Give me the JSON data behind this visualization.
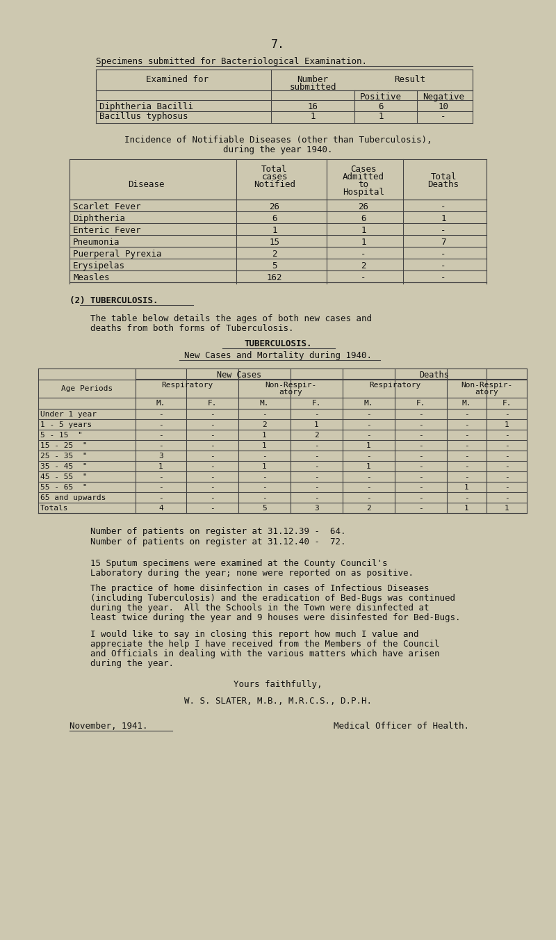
{
  "bg_color": "#cdc8b0",
  "text_color": "#1a1a1a",
  "page_number": "7.",
  "table1_title": "Specimens submitted for Bacteriological Examination.",
  "table1_rows": [
    [
      "Diphtheria Bacilli",
      "16",
      "6",
      "10"
    ],
    [
      "Bacillus typhosus",
      "1",
      "1",
      "-"
    ]
  ],
  "incidence_title1": "Incidence of Notifiable Diseases (other than Tuberculosis),",
  "incidence_title2": "during the year 1940.",
  "table2_rows": [
    [
      "Scarlet Fever",
      "26",
      "26",
      "-"
    ],
    [
      "Diphtheria",
      "6",
      "6",
      "1"
    ],
    [
      "Enteric Fever",
      "1",
      "1",
      "-"
    ],
    [
      "Pneumonia",
      "15",
      "1",
      "7"
    ],
    [
      "Puerperal Pyrexia",
      "2",
      "-",
      "-"
    ],
    [
      "Erysipelas",
      "5",
      "2",
      "-"
    ],
    [
      "Measles",
      "162",
      "-",
      "-"
    ]
  ],
  "tb_section_label": "(2) TUBERCULOSIS.",
  "tb_para1": "The table below details the ages of both new cases and",
  "tb_para2": "deaths from both forms of Tuberculosis.",
  "tb_table_title1": "TUBERCULOSIS.",
  "tb_table_title2": "New Cases and Mortality during 1940.",
  "tb_rows": [
    [
      "Under 1 year",
      "-",
      "-",
      "-",
      "-",
      "-",
      "-",
      "-",
      "-"
    ],
    [
      "1 - 5 years",
      "-",
      "-",
      "2",
      "1",
      "-",
      "-",
      "-",
      "1"
    ],
    [
      "5 - 15  \"",
      "-",
      "-",
      "1",
      "2",
      "-",
      "-",
      "-",
      "-"
    ],
    [
      "15 - 25  \"",
      "-",
      "-",
      "1",
      "-",
      "1",
      "-",
      "-",
      "-"
    ],
    [
      "25 - 35  \"",
      "3",
      "-",
      "-",
      "-",
      "-",
      "-",
      "-",
      "-"
    ],
    [
      "35 - 45  \"",
      "1",
      "-",
      "1",
      "-",
      "1",
      "-",
      "-",
      "-"
    ],
    [
      "45 - 55  \"",
      "-",
      "-",
      "-",
      "-",
      "-",
      "-",
      "-",
      "-"
    ],
    [
      "55 - 65  \"",
      "-",
      "-",
      "-",
      "-",
      "-",
      "-",
      "1",
      "-"
    ],
    [
      "65 and upwards",
      "-",
      "-",
      "-",
      "-",
      "-",
      "-",
      "-",
      "-"
    ],
    [
      "Totals",
      "4",
      "-",
      "5",
      "3",
      "2",
      "-",
      "1",
      "1"
    ]
  ],
  "register_lines": [
    "Number of patients on register at 31.12.39 -  64.",
    "Number of patients on register at 31.12.40 -  72."
  ],
  "para1a": "15 Sputum specimens were examined at the County Council's",
  "para1b": "Laboratory during the year; none were reported on as positive.",
  "para2a": "The practice of home disinfection in cases of Infectious Diseases",
  "para2b": "(including Tuberculosis) and the eradication of Bed-Bugs was continued",
  "para2c": "during the year.  All the Schools in the Town were disinfected at",
  "para2d": "least twice during the year and 9 houses were disinfested for Bed-Bugs.",
  "para3a": "I would like to say in closing this report how much I value and",
  "para3b": "appreciate the help I have received from the Members of the Council",
  "para3c": "and Officials in dealing with the various matters which have arisen",
  "para3d": "during the year.",
  "closing": "Yours faithfully,",
  "signatory": "W. S. SLATER, M.B., M.R.C.S., D.P.H.",
  "date_line": "November, 1941.",
  "title_line": "Medical Officer of Health."
}
